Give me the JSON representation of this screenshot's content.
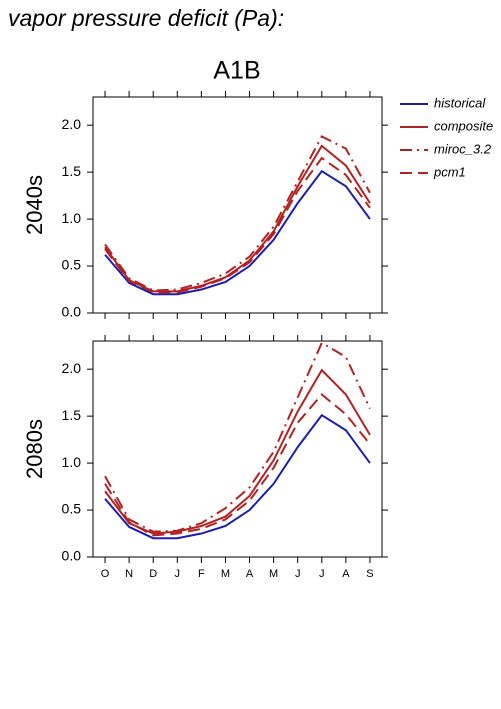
{
  "title": "vapor pressure deficit (Pa):",
  "subtitle": "A1B",
  "chart_data": [
    {
      "type": "line",
      "ylabel": "2040s",
      "categories": [
        null,
        null,
        null,
        null,
        null,
        null,
        null,
        null,
        null,
        null,
        null,
        null
      ],
      "ylim": [
        0,
        2.3
      ],
      "yticks": [
        {
          "value": 0,
          "label": "0.0"
        },
        0.5,
        {
          "value": 1,
          "label": "1.0"
        },
        1.5,
        {
          "value": 2,
          "label": "2.0"
        }
      ],
      "series": [
        {
          "name": "historical",
          "color": "#1c1cb4",
          "dash": "solid",
          "values": [
            0.62,
            0.32,
            0.2,
            0.2,
            0.25,
            0.33,
            0.5,
            0.78,
            1.17,
            1.51,
            1.35,
            1.0
          ]
        },
        {
          "name": "composite",
          "color": "#b22222",
          "dash": "solid",
          "values": [
            0.7,
            0.35,
            0.23,
            0.23,
            0.29,
            0.38,
            0.56,
            0.87,
            1.35,
            1.78,
            1.57,
            1.17
          ]
        },
        {
          "name": "miroc_3.2",
          "color": "#b22222",
          "dash": "dashdot",
          "values": [
            0.73,
            0.37,
            0.24,
            0.25,
            0.32,
            0.42,
            0.6,
            0.92,
            1.4,
            1.88,
            1.75,
            1.28
          ]
        },
        {
          "name": "pcm1",
          "color": "#b22222",
          "dash": "dashed",
          "values": [
            0.68,
            0.34,
            0.22,
            0.22,
            0.28,
            0.37,
            0.54,
            0.84,
            1.3,
            1.65,
            1.47,
            1.12
          ]
        }
      ]
    },
    {
      "type": "line",
      "ylabel": "2080s",
      "categories": [
        "O",
        "N",
        "D",
        "J",
        "F",
        "M",
        "A",
        "M",
        "J",
        "J",
        "A",
        "S"
      ],
      "ylim": [
        0,
        2.3
      ],
      "yticks": [
        {
          "value": 0,
          "label": "0.0"
        },
        0.5,
        {
          "value": 1,
          "label": "1.0"
        },
        1.5,
        {
          "value": 2,
          "label": "2.0"
        }
      ],
      "series": [
        {
          "color": "#1c1cb4",
          "dash": "solid",
          "values": [
            0.62,
            0.32,
            0.2,
            0.2,
            0.25,
            0.33,
            0.5,
            0.78,
            1.17,
            1.51,
            1.35,
            1.0
          ]
        },
        {
          "color": "#b22222",
          "dash": "solid",
          "values": [
            0.7,
            0.36,
            0.25,
            0.27,
            0.33,
            0.43,
            0.65,
            1.03,
            1.55,
            1.99,
            1.73,
            1.3
          ]
        },
        {
          "color": "#b22222",
          "dash": "dashdot",
          "values": [
            0.86,
            0.4,
            0.27,
            0.28,
            0.36,
            0.52,
            0.74,
            1.12,
            1.7,
            2.28,
            2.13,
            1.58
          ]
        },
        {
          "color": "#b22222",
          "dash": "dashed",
          "values": [
            0.78,
            0.37,
            0.23,
            0.25,
            0.3,
            0.4,
            0.6,
            0.95,
            1.43,
            1.73,
            1.52,
            1.2
          ]
        }
      ]
    }
  ]
}
